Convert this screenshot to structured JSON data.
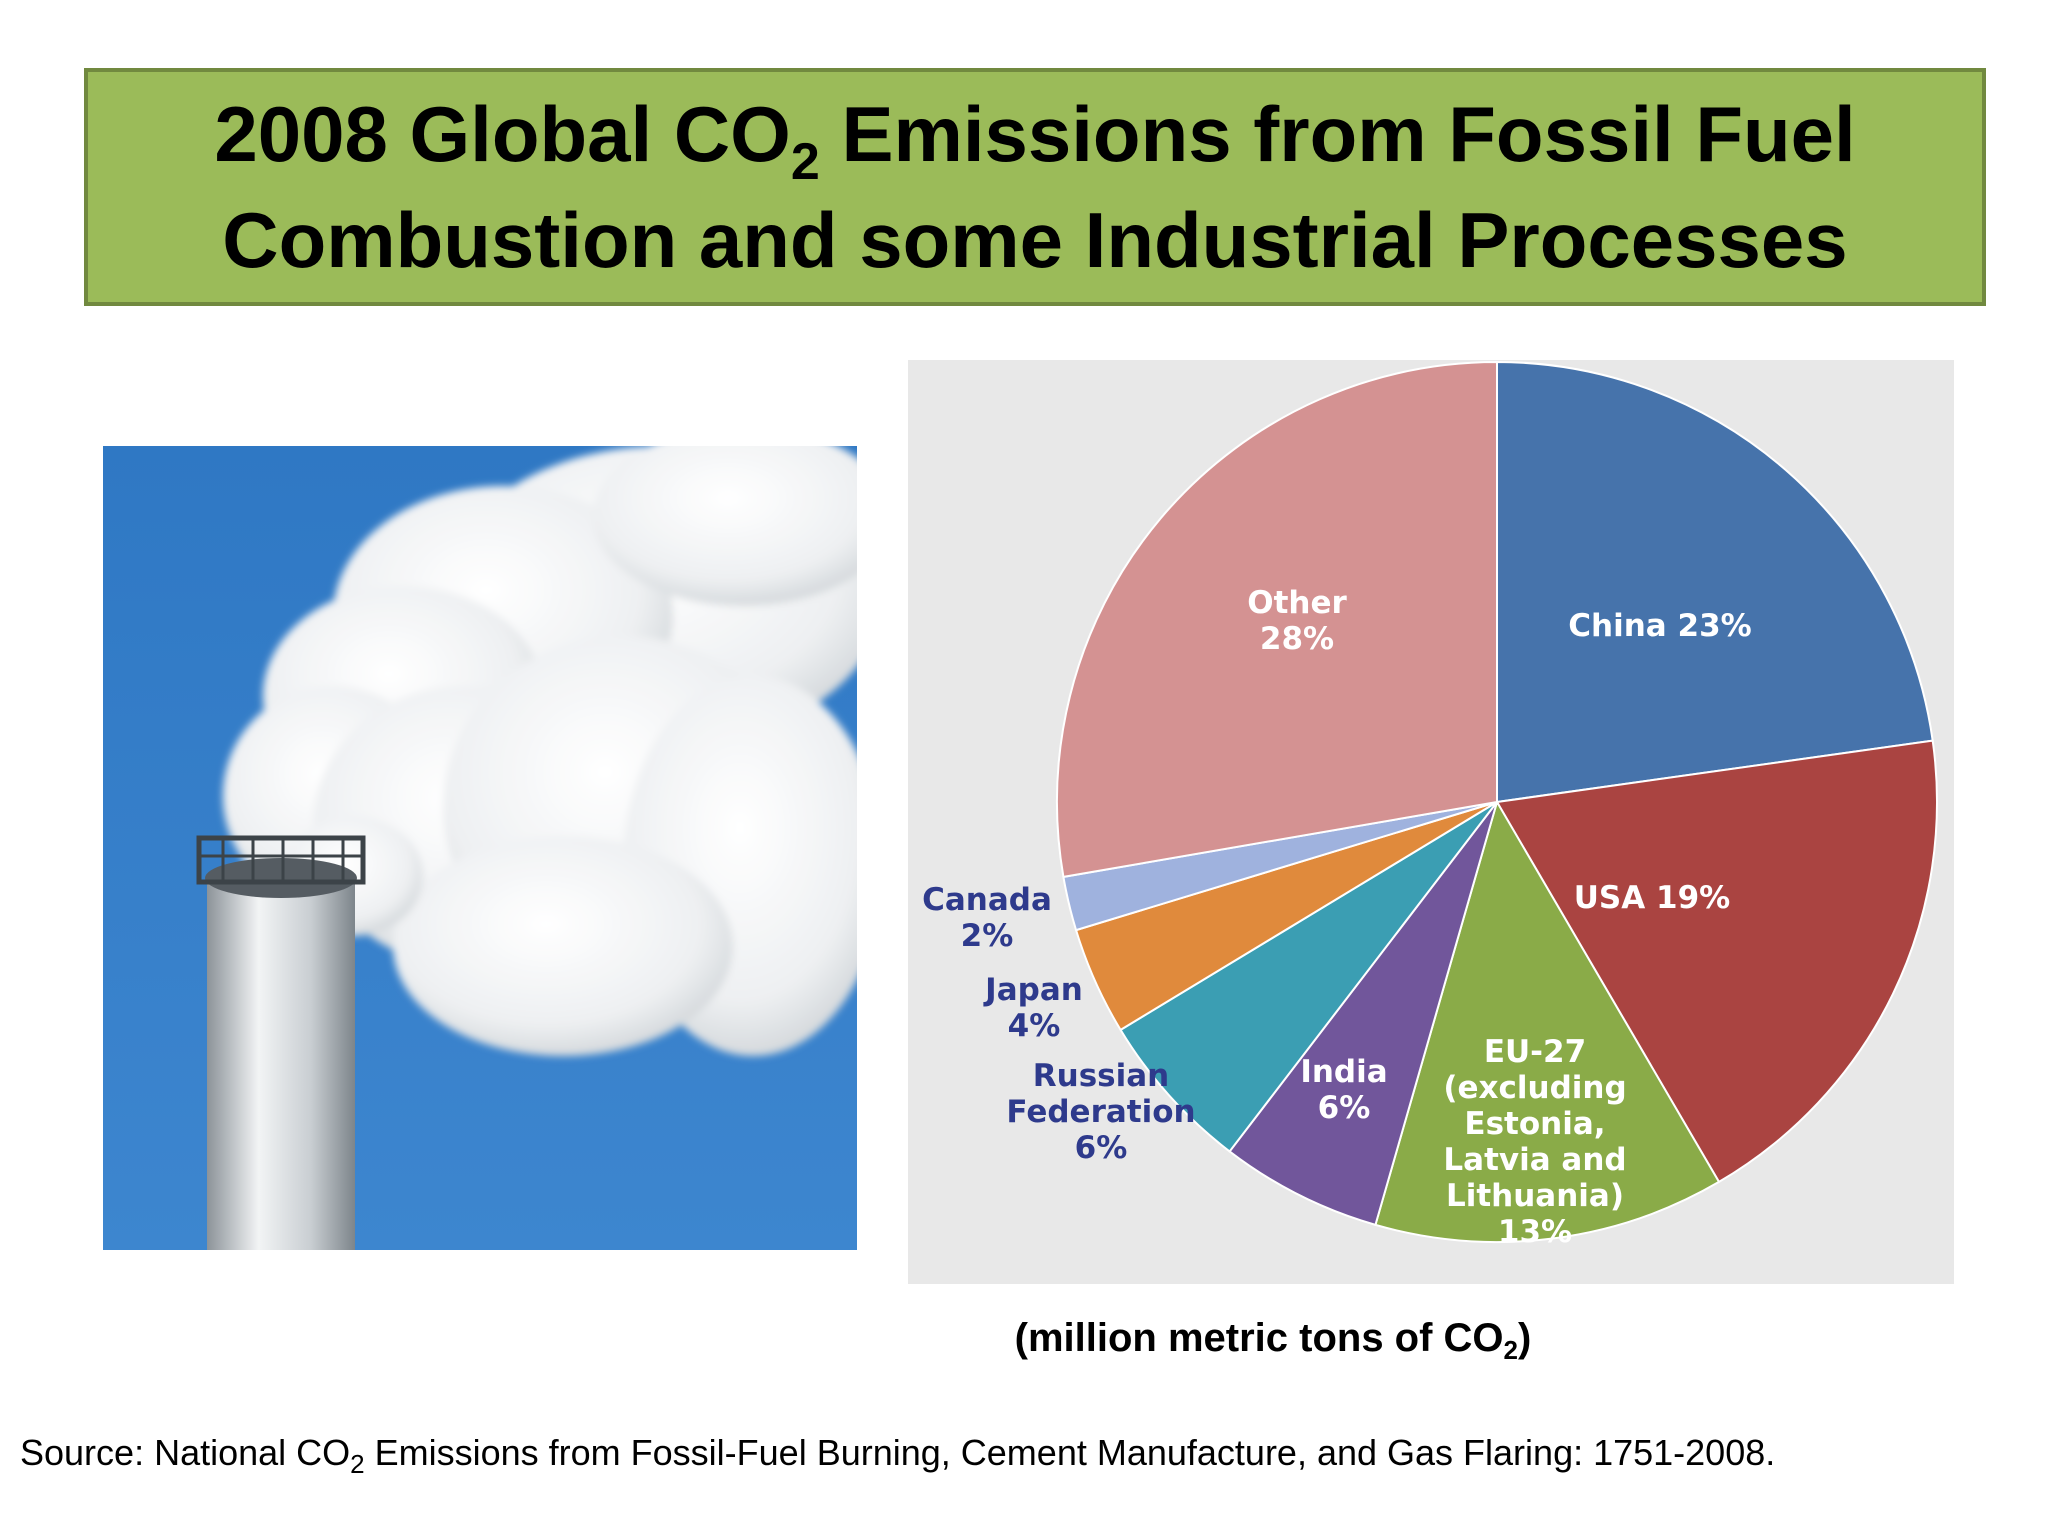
{
  "title": {
    "line1_pre": "2008 Global CO",
    "line1_sub": "2",
    "line1_post": " Emissions from Fossil Fuel",
    "line2": "Combustion and some Industrial Processes"
  },
  "units": {
    "pre": "(million metric tons of CO",
    "sub": "2",
    "post": ")"
  },
  "source": {
    "pre": "Source: National CO",
    "sub": "2",
    "post": " Emissions from Fossil-Fuel Burning, Cement Manufacture, and Gas Flaring: 1751-2008."
  },
  "colors": {
    "title_bg": "#9bbb59",
    "title_border": "#71893f",
    "panel_bg": "#e8e8e8",
    "external_label": "#2e3a8c",
    "internal_label": "#ffffff"
  },
  "chart_data": {
    "type": "pie",
    "start": "12 o'clock, clockwise",
    "slices": [
      {
        "name": "China",
        "value": 23,
        "color": "#4673ab",
        "label_lines": [
          "China 23%"
        ],
        "label_placement": "inside"
      },
      {
        "name": "USA",
        "value": 19,
        "color": "#aa4441",
        "label_lines": [
          "USA 19%"
        ],
        "label_placement": "inside"
      },
      {
        "name": "EU-27",
        "value": 13,
        "color": "#8aab48",
        "label_lines": [
          "EU-27",
          "(excluding",
          "Estonia,",
          "Latvia and",
          "Lithuania)",
          "13%"
        ],
        "label_placement": "inside"
      },
      {
        "name": "India",
        "value": 6,
        "color": "#71569b",
        "label_lines": [
          "India",
          "6%"
        ],
        "label_placement": "inside"
      },
      {
        "name": "Russian Federation",
        "value": 6,
        "color": "#3b9eb3",
        "label_lines": [
          "Russian",
          "Federation",
          "6%"
        ],
        "label_placement": "outside"
      },
      {
        "name": "Japan",
        "value": 4,
        "color": "#e08a3c",
        "label_lines": [
          "Japan",
          "4%"
        ],
        "label_placement": "outside"
      },
      {
        "name": "Canada",
        "value": 2,
        "color": "#9fb2de",
        "label_lines": [
          "Canada",
          "2%"
        ],
        "label_placement": "outside"
      },
      {
        "name": "Other",
        "value": 28,
        "color": "#d49292",
        "label_lines": [
          "Other",
          "28%"
        ],
        "label_placement": "inside"
      }
    ]
  }
}
